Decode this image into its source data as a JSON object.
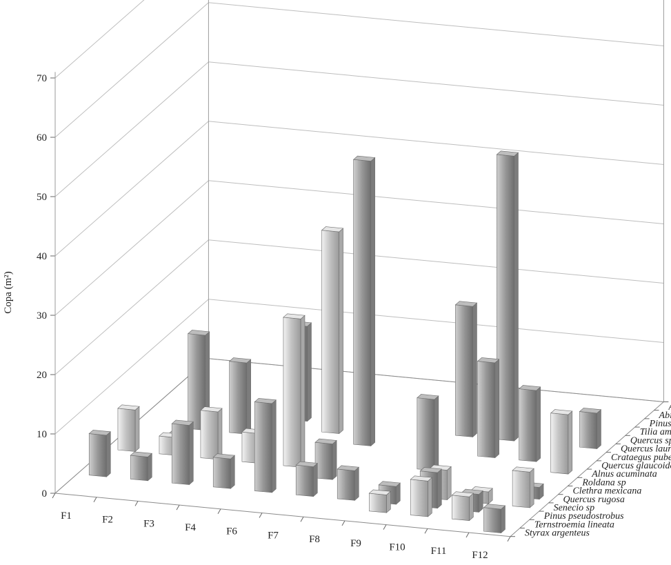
{
  "chart_data": {
    "type": "bar",
    "subtype": "3d-column",
    "ylabel": "Copa (m²)",
    "ylim": [
      0,
      70
    ],
    "yticks": [
      0,
      10,
      20,
      30,
      40,
      50,
      60,
      70
    ],
    "grid": true,
    "categories": [
      "F1",
      "F2",
      "F3",
      "F4",
      "F6",
      "F7",
      "F8",
      "F9",
      "F10",
      "F11",
      "F12"
    ],
    "series": [
      {
        "name": "Styrax argenteus",
        "values": [
          0,
          0,
          0,
          0,
          0,
          0,
          0,
          0,
          0,
          0,
          4
        ]
      },
      {
        "name": "Ternstroemia lineata",
        "values": [
          0,
          0,
          0,
          0,
          0,
          0,
          0,
          3,
          6,
          4,
          0
        ]
      },
      {
        "name": "Pinus pseudostrobus",
        "values": [
          7,
          4,
          10,
          5,
          15,
          5,
          5,
          3,
          6,
          3,
          0
        ]
      },
      {
        "name": "Senecio sp",
        "values": [
          0,
          0,
          0,
          0,
          0,
          0,
          0,
          0,
          5,
          2,
          6
        ]
      },
      {
        "name": "Quercus rugosa",
        "values": [
          0,
          0,
          0,
          0,
          0,
          6,
          0,
          0,
          0,
          0,
          2
        ]
      },
      {
        "name": "Clethra mexicana",
        "values": [
          7,
          3,
          8,
          5,
          25,
          0,
          0,
          0,
          0,
          0,
          0
        ]
      },
      {
        "name": "Roldana sp",
        "values": [
          0,
          2,
          0,
          0,
          0,
          0,
          0,
          12,
          0,
          0,
          0
        ]
      },
      {
        "name": "Alnus acuminata",
        "values": [
          0,
          0,
          0,
          0,
          0,
          0,
          0,
          0,
          0,
          0,
          10
        ]
      },
      {
        "name": "Quercus glaucoides",
        "values": [
          0,
          16,
          12,
          0,
          0,
          48,
          0,
          0,
          16,
          12,
          0
        ]
      },
      {
        "name": "Crataegus pubescens",
        "values": [
          0,
          0,
          0,
          0,
          34,
          0,
          0,
          0,
          0,
          0,
          0
        ]
      },
      {
        "name": "Quercus laurina",
        "values": [
          0,
          0,
          0,
          16,
          0,
          0,
          0,
          22,
          48,
          0,
          6
        ]
      },
      {
        "name": "Quercus sp",
        "values": [
          0,
          0,
          0,
          0,
          0,
          0,
          0,
          0,
          0,
          0,
          0
        ]
      },
      {
        "name": "Tilia americana",
        "values": [
          0,
          0,
          0,
          0,
          0,
          0,
          0,
          0,
          0,
          0,
          0
        ]
      },
      {
        "name": "Pinus leiophylla",
        "values": [
          0,
          0,
          0,
          0,
          0,
          0,
          0,
          0,
          0,
          0,
          0
        ]
      },
      {
        "name": "Abies religiosa",
        "values": [
          0,
          0,
          0,
          0,
          0,
          0,
          0,
          0,
          0,
          0,
          0
        ]
      },
      {
        "name": "Arbutus xalapensis",
        "values": [
          0,
          0,
          0,
          0,
          0,
          0,
          0,
          0,
          0,
          0,
          0
        ]
      }
    ]
  }
}
